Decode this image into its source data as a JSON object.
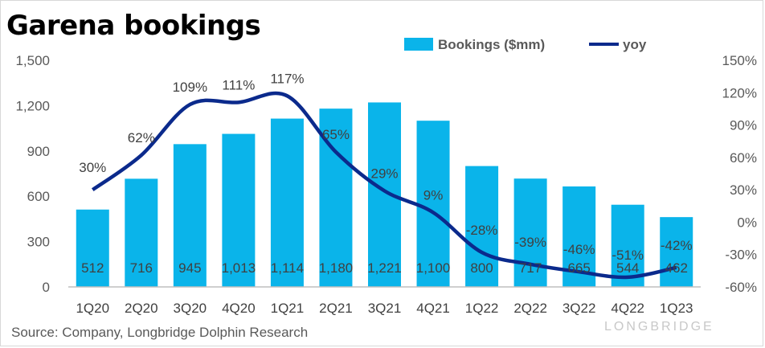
{
  "title": "Garena bookings",
  "source": "Source: Company, Longbridge Dolphin Research",
  "watermark": "LONGBRIDGE",
  "colors": {
    "bar": "#0ab4ea",
    "line": "#0b2a8c",
    "axis": "#bfbfbf"
  },
  "chart_data": {
    "type": "bar",
    "categories": [
      "1Q20",
      "2Q20",
      "3Q20",
      "4Q20",
      "1Q21",
      "2Q21",
      "3Q21",
      "4Q21",
      "1Q22",
      "2Q22",
      "3Q22",
      "4Q22",
      "1Q23"
    ],
    "series": [
      {
        "name": "Bookings ($mm)",
        "type": "bar",
        "axis": "left",
        "values": [
          512,
          716,
          945,
          1013,
          1114,
          1180,
          1221,
          1100,
          800,
          717,
          665,
          544,
          462
        ],
        "labels": [
          "512",
          "716",
          "945",
          "1,013",
          "1,114",
          "1,180",
          "1,221",
          "1,100",
          "800",
          "717",
          "665",
          "544",
          "462"
        ]
      },
      {
        "name": "yoy",
        "type": "line",
        "axis": "right",
        "values": [
          30,
          62,
          109,
          111,
          117,
          65,
          29,
          9,
          -28,
          -39,
          -46,
          -51,
          -42
        ],
        "labels": [
          "30%",
          "62%",
          "109%",
          "111%",
          "117%",
          "65%",
          "29%",
          "9%",
          "-28%",
          "-39%",
          "-46%",
          "-51%",
          "-42%"
        ]
      }
    ],
    "y_left": {
      "min": 0,
      "max": 1500,
      "ticks": [
        "0",
        "300",
        "600",
        "900",
        "1,200",
        "1,500"
      ]
    },
    "y_right": {
      "min": -60,
      "max": 150,
      "ticks": [
        "-60%",
        "-30%",
        "0%",
        "30%",
        "60%",
        "90%",
        "120%",
        "150%"
      ]
    },
    "legend": "top-right",
    "grid": false
  }
}
